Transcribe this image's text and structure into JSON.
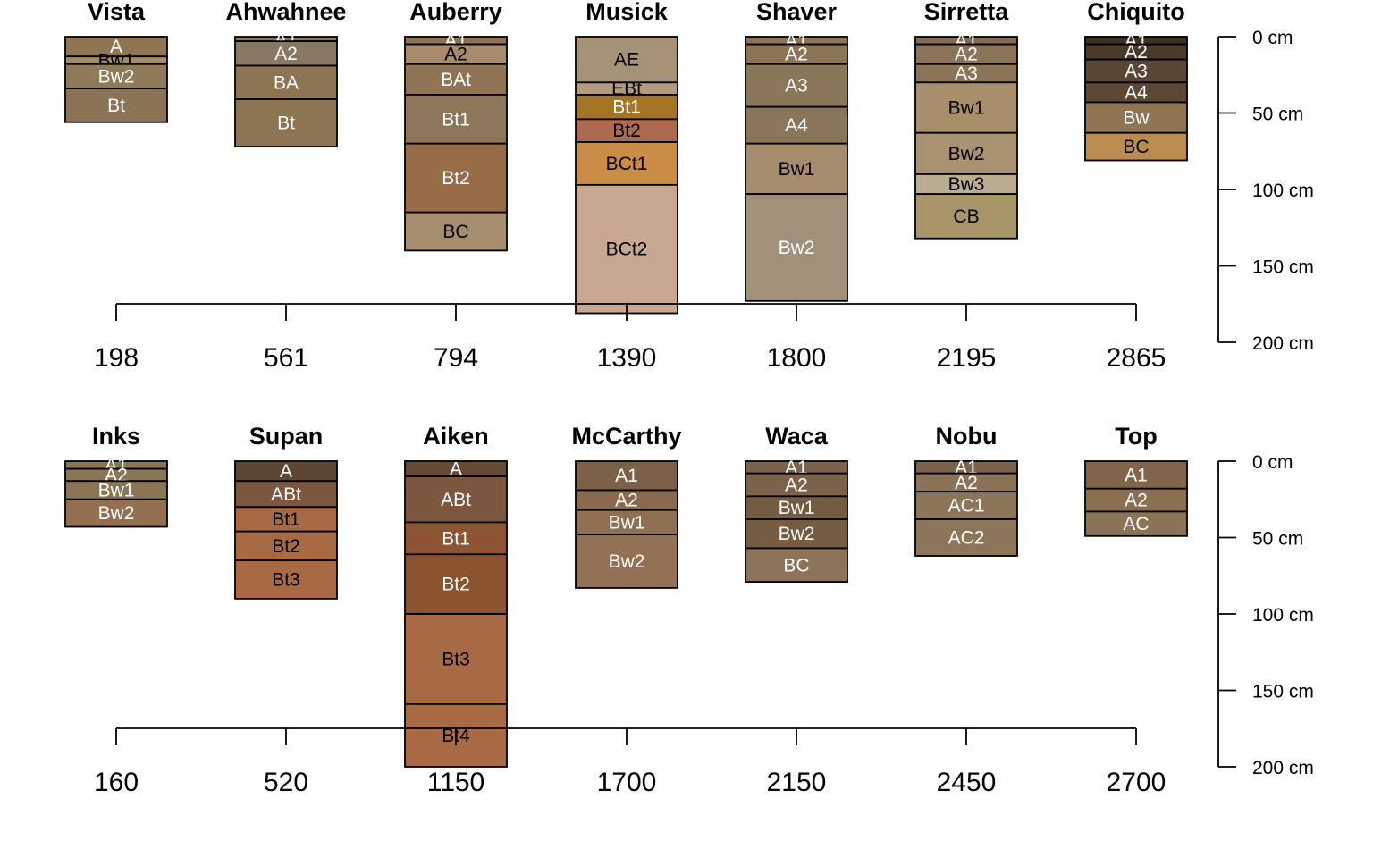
{
  "chart_data": [
    {
      "type": "diagram",
      "depth_axis": {
        "ticks": [
          "0 cm",
          "50 cm",
          "100 cm",
          "150 cm",
          "200 cm"
        ],
        "max_cm": 200
      },
      "profiles": [
        {
          "name": "Vista",
          "elevation": "198",
          "horizons": [
            {
              "name": "A",
              "top": 0,
              "bottom": 13,
              "color": "#8f7552",
              "label_color": "#ffffff"
            },
            {
              "name": "Bw1",
              "top": 13,
              "bottom": 18,
              "color": "#a48c6a",
              "label_color": "#000000"
            },
            {
              "name": "Bw2",
              "top": 18,
              "bottom": 34,
              "color": "#917a59",
              "label_color": "#ffffff"
            },
            {
              "name": "Bt",
              "top": 34,
              "bottom": 56,
              "color": "#8b7456",
              "label_color": "#ffffff"
            }
          ]
        },
        {
          "name": "Ahwahnee",
          "elevation": "561",
          "horizons": [
            {
              "name": "A1",
              "top": 0,
              "bottom": 3,
              "color": "#857561",
              "label_color": "#ffffff"
            },
            {
              "name": "A2",
              "top": 3,
              "bottom": 19,
              "color": "#887863",
              "label_color": "#ffffff"
            },
            {
              "name": "BA",
              "top": 19,
              "bottom": 41,
              "color": "#8d7452",
              "label_color": "#ffffff"
            },
            {
              "name": "Bt",
              "top": 41,
              "bottom": 72,
              "color": "#8d7452",
              "label_color": "#ffffff"
            }
          ]
        },
        {
          "name": "Auberry",
          "elevation": "794",
          "horizons": [
            {
              "name": "A1",
              "top": 0,
              "bottom": 5,
              "color": "#8c7355",
              "label_color": "#ffffff"
            },
            {
              "name": "A2",
              "top": 5,
              "bottom": 18,
              "color": "#a68c6c",
              "label_color": "#000000"
            },
            {
              "name": "BAt",
              "top": 18,
              "bottom": 38,
              "color": "#8f7555",
              "label_color": "#ffffff"
            },
            {
              "name": "Bt1",
              "top": 38,
              "bottom": 70,
              "color": "#8d765a",
              "label_color": "#ffffff"
            },
            {
              "name": "Bt2",
              "top": 70,
              "bottom": 115,
              "color": "#996c48",
              "label_color": "#ffffff"
            },
            {
              "name": "BC",
              "top": 115,
              "bottom": 140,
              "color": "#a68d6e",
              "label_color": "#000000"
            }
          ]
        },
        {
          "name": "Musick",
          "elevation": "1390",
          "horizons": [
            {
              "name": "AE",
              "top": 0,
              "bottom": 30,
              "color": "#a69276",
              "label_color": "#000000"
            },
            {
              "name": "EBt",
              "top": 30,
              "bottom": 38,
              "color": "#b39b7c",
              "label_color": "#000000"
            },
            {
              "name": "Bt1",
              "top": 38,
              "bottom": 54,
              "color": "#a57424",
              "label_color": "#ffffff"
            },
            {
              "name": "Bt2",
              "top": 54,
              "bottom": 69,
              "color": "#ad6a51",
              "label_color": "#000000"
            },
            {
              "name": "BCt1",
              "top": 69,
              "bottom": 97,
              "color": "#cb8c48",
              "label_color": "#000000"
            },
            {
              "name": "BCt2",
              "top": 97,
              "bottom": 181,
              "color": "#c8a891",
              "label_color": "#000000"
            }
          ]
        },
        {
          "name": "Shaver",
          "elevation": "1800",
          "horizons": [
            {
              "name": "A1",
              "top": 0,
              "bottom": 5,
              "color": "#8b7557",
              "label_color": "#ffffff"
            },
            {
              "name": "A2",
              "top": 5,
              "bottom": 18,
              "color": "#8c7557",
              "label_color": "#ffffff"
            },
            {
              "name": "A3",
              "top": 18,
              "bottom": 46,
              "color": "#8a7659",
              "label_color": "#ffffff"
            },
            {
              "name": "A4",
              "top": 46,
              "bottom": 70,
              "color": "#8a7659",
              "label_color": "#ffffff"
            },
            {
              "name": "Bw1",
              "top": 70,
              "bottom": 103,
              "color": "#a58c6d",
              "label_color": "#000000"
            },
            {
              "name": "Bw2",
              "top": 103,
              "bottom": 173,
              "color": "#a1907a",
              "label_color": "#ffffff"
            }
          ]
        },
        {
          "name": "Sirretta",
          "elevation": "2195",
          "horizons": [
            {
              "name": "A1",
              "top": 0,
              "bottom": 5,
              "color": "#7f6b56",
              "label_color": "#ffffff"
            },
            {
              "name": "A2",
              "top": 5,
              "bottom": 18,
              "color": "#8b7458",
              "label_color": "#ffffff"
            },
            {
              "name": "A3",
              "top": 18,
              "bottom": 30,
              "color": "#8c7456",
              "label_color": "#ffffff"
            },
            {
              "name": "Bw1",
              "top": 30,
              "bottom": 63,
              "color": "#a88e6a",
              "label_color": "#000000"
            },
            {
              "name": "Bw2",
              "top": 63,
              "bottom": 90,
              "color": "#aa916f",
              "label_color": "#000000"
            },
            {
              "name": "Bw3",
              "top": 90,
              "bottom": 103,
              "color": "#bcac91",
              "label_color": "#000000"
            },
            {
              "name": "CB",
              "top": 103,
              "bottom": 132,
              "color": "#a9956a",
              "label_color": "#000000"
            }
          ]
        },
        {
          "name": "Chiquito",
          "elevation": "2865",
          "horizons": [
            {
              "name": "A1",
              "top": 0,
              "bottom": 5,
              "color": "#3f3128",
              "label_color": "#ffffff"
            },
            {
              "name": "A2",
              "top": 5,
              "bottom": 15,
              "color": "#4a3a2c",
              "label_color": "#ffffff"
            },
            {
              "name": "A3",
              "top": 15,
              "bottom": 30,
              "color": "#5a4634",
              "label_color": "#ffffff"
            },
            {
              "name": "A4",
              "top": 30,
              "bottom": 43,
              "color": "#5d4834",
              "label_color": "#ffffff"
            },
            {
              "name": "Bw",
              "top": 43,
              "bottom": 63,
              "color": "#8f7552",
              "label_color": "#ffffff"
            },
            {
              "name": "BC",
              "top": 63,
              "bottom": 81,
              "color": "#bb8c4f",
              "label_color": "#000000"
            }
          ]
        }
      ]
    },
    {
      "type": "diagram",
      "depth_axis": {
        "ticks": [
          "0 cm",
          "50 cm",
          "100 cm",
          "150 cm",
          "200 cm"
        ],
        "max_cm": 200
      },
      "profiles": [
        {
          "name": "Inks",
          "elevation": "160",
          "horizons": [
            {
              "name": "A1",
              "top": 0,
              "bottom": 5,
              "color": "#8b7557",
              "label_color": "#ffffff"
            },
            {
              "name": "A2",
              "top": 5,
              "bottom": 13,
              "color": "#8b7557",
              "label_color": "#ffffff"
            },
            {
              "name": "Bw1",
              "top": 13,
              "bottom": 25,
              "color": "#8b7557",
              "label_color": "#ffffff"
            },
            {
              "name": "Bw2",
              "top": 25,
              "bottom": 43,
              "color": "#936f4f",
              "label_color": "#ffffff"
            }
          ]
        },
        {
          "name": "Supan",
          "elevation": "520",
          "horizons": [
            {
              "name": "A",
              "top": 0,
              "bottom": 13,
              "color": "#5e4635",
              "label_color": "#ffffff"
            },
            {
              "name": "ABt",
              "top": 13,
              "bottom": 30,
              "color": "#7d5640",
              "label_color": "#ffffff"
            },
            {
              "name": "Bt1",
              "top": 30,
              "bottom": 46,
              "color": "#a86a45",
              "label_color": "#000000"
            },
            {
              "name": "Bt2",
              "top": 46,
              "bottom": 65,
              "color": "#a86a45",
              "label_color": "#000000"
            },
            {
              "name": "Bt3",
              "top": 65,
              "bottom": 90,
              "color": "#a86a45",
              "label_color": "#000000"
            }
          ]
        },
        {
          "name": "Aiken",
          "elevation": "1150",
          "horizons": [
            {
              "name": "A",
              "top": 0,
              "bottom": 10,
              "color": "#674a34",
              "label_color": "#ffffff"
            },
            {
              "name": "ABt",
              "top": 10,
              "bottom": 40,
              "color": "#7d5640",
              "label_color": "#ffffff"
            },
            {
              "name": "Bt1",
              "top": 40,
              "bottom": 61,
              "color": "#8d5433",
              "label_color": "#ffffff"
            },
            {
              "name": "Bt2",
              "top": 61,
              "bottom": 100,
              "color": "#8b5330",
              "label_color": "#ffffff"
            },
            {
              "name": "Bt3",
              "top": 100,
              "bottom": 159,
              "color": "#a86a45",
              "label_color": "#000000"
            },
            {
              "name": "Bt4",
              "top": 159,
              "bottom": 200,
              "color": "#a86a45",
              "label_color": "#000000"
            }
          ]
        },
        {
          "name": "McCarthy",
          "elevation": "1700",
          "horizons": [
            {
              "name": "A1",
              "top": 0,
              "bottom": 19,
              "color": "#7c6148",
              "label_color": "#ffffff"
            },
            {
              "name": "A2",
              "top": 19,
              "bottom": 32,
              "color": "#8a6a4f",
              "label_color": "#ffffff"
            },
            {
              "name": "Bw1",
              "top": 32,
              "bottom": 48,
              "color": "#8f7052",
              "label_color": "#ffffff"
            },
            {
              "name": "Bw2",
              "top": 48,
              "bottom": 83,
              "color": "#937154",
              "label_color": "#ffffff"
            }
          ]
        },
        {
          "name": "Waca",
          "elevation": "2150",
          "horizons": [
            {
              "name": "A1",
              "top": 0,
              "bottom": 8,
              "color": "#7b6248",
              "label_color": "#ffffff"
            },
            {
              "name": "A2",
              "top": 8,
              "bottom": 23,
              "color": "#7b6248",
              "label_color": "#ffffff"
            },
            {
              "name": "Bw1",
              "top": 23,
              "bottom": 38,
              "color": "#735c41",
              "label_color": "#ffffff"
            },
            {
              "name": "Bw2",
              "top": 38,
              "bottom": 57,
              "color": "#765c41",
              "label_color": "#ffffff"
            },
            {
              "name": "BC",
              "top": 57,
              "bottom": 79,
              "color": "#8c735a",
              "label_color": "#ffffff"
            }
          ]
        },
        {
          "name": "Nobu",
          "elevation": "2450",
          "horizons": [
            {
              "name": "A1",
              "top": 0,
              "bottom": 8,
              "color": "#7b6248",
              "label_color": "#ffffff"
            },
            {
              "name": "A2",
              "top": 8,
              "bottom": 20,
              "color": "#8b735a",
              "label_color": "#ffffff"
            },
            {
              "name": "AC1",
              "top": 20,
              "bottom": 38,
              "color": "#8d7559",
              "label_color": "#ffffff"
            },
            {
              "name": "AC2",
              "top": 38,
              "bottom": 62,
              "color": "#8d7559",
              "label_color": "#ffffff"
            }
          ]
        },
        {
          "name": "Top",
          "elevation": "2700",
          "horizons": [
            {
              "name": "A1",
              "top": 0,
              "bottom": 18,
              "color": "#816449",
              "label_color": "#ffffff"
            },
            {
              "name": "A2",
              "top": 18,
              "bottom": 33,
              "color": "#8a6f52",
              "label_color": "#ffffff"
            },
            {
              "name": "AC",
              "top": 33,
              "bottom": 49,
              "color": "#8b7357",
              "label_color": "#ffffff"
            }
          ]
        }
      ]
    }
  ]
}
